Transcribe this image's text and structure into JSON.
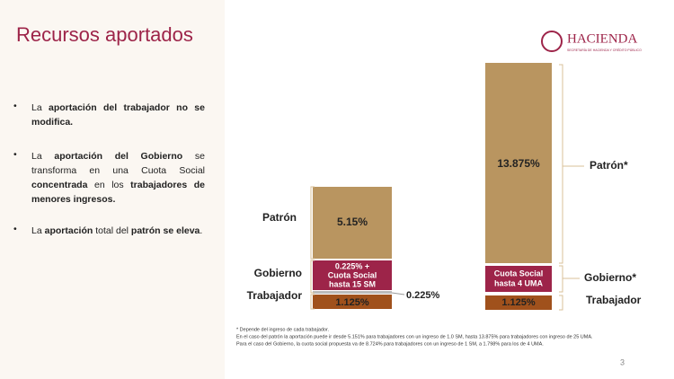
{
  "header": {
    "title": "Recursos aportados",
    "logo": "HACIENDA",
    "logo_subtitle": "SECRETARÍA DE HACIENDA Y CRÉDITO PÚBLICO"
  },
  "bullets": [
    [
      {
        "text": "La ",
        "bold": false
      },
      {
        "text": "aportación del trabajador no se modifica.",
        "bold": true
      }
    ],
    [
      {
        "text": "La ",
        "bold": false
      },
      {
        "text": "aportación del Gobierno",
        "bold": true
      },
      {
        "text": " se transforma en una Cuota Social ",
        "bold": false
      },
      {
        "text": "concentrada",
        "bold": true
      },
      {
        "text": " en los ",
        "bold": false
      },
      {
        "text": "trabajadores de menores ingresos.",
        "bold": true
      }
    ],
    [
      {
        "text": "La ",
        "bold": false
      },
      {
        "text": "aportación",
        "bold": true
      },
      {
        "text": " total del ",
        "bold": false
      },
      {
        "text": "patrón se eleva",
        "bold": true
      },
      {
        "text": ".",
        "bold": false
      }
    ]
  ],
  "diagram": {
    "left": {
      "patron_label": "Patrón",
      "gobierno_label": "Gobierno",
      "trabajador_label": "Trabajador",
      "patron_value": "5.15%",
      "gobierno_value": [
        "0.225% +",
        "Cuota Social",
        "hasta 15 SM"
      ],
      "trabajador_value": "1.125%",
      "side_value": "0.225%"
    },
    "right": {
      "patron_label": "Patrón*",
      "gobierno_label": "Gobierno*",
      "trabajador_label": "Trabajador",
      "patron_value": "13.875%",
      "gobierno_value": [
        "Cuota Social",
        "hasta 4 UMA"
      ],
      "trabajador_value": "1.125%"
    }
  },
  "footnote": [
    "* Depende del ingreso de cada trabajador.",
    "En el caso del patrón la aportación puede ir desde 5.151% para trabajadores con un ingreso de 1.0 SM, hasta 13.875% para trabajadores con ingreso de 25 UMA.",
    "Para el caso del Gobierno, la cuota social propuesta va de 8.724% para trabajadores con un ingreso de 1 SM, a 1.798% para los de 4 UMA."
  ],
  "page_number": "3"
}
